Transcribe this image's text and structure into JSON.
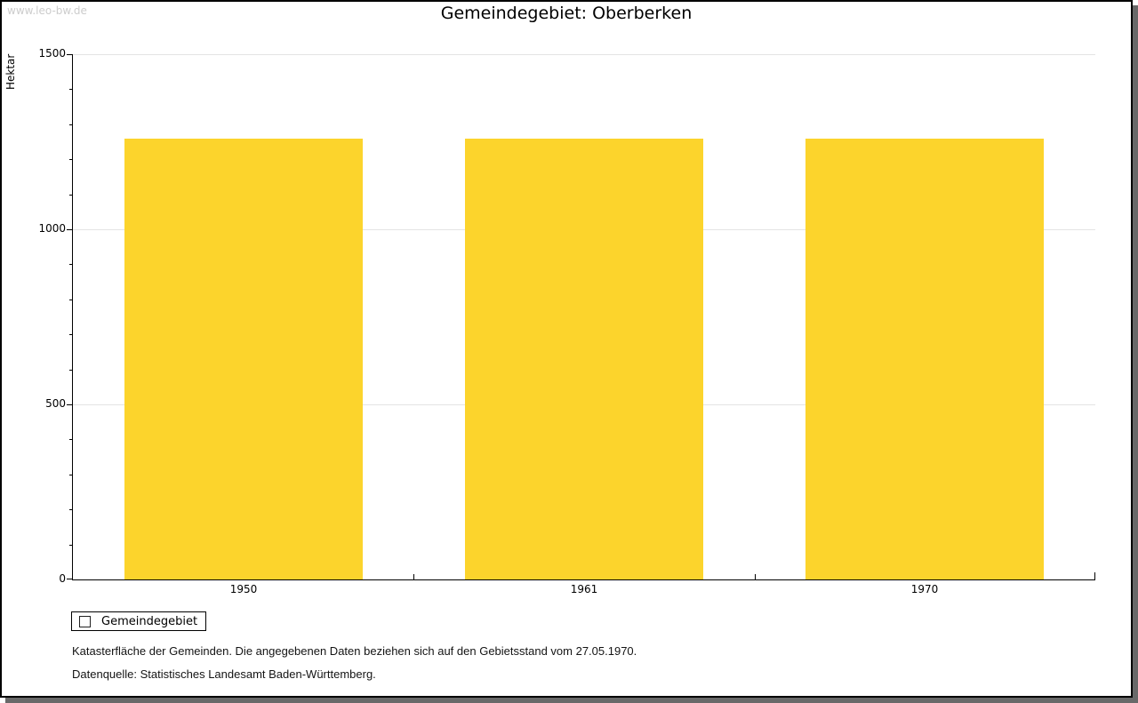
{
  "window": {
    "watermark": "www.leo-bw.de"
  },
  "chart_data": {
    "type": "bar",
    "title": "Gemeindegebiet: Oberberken",
    "categories": [
      "1950",
      "1961",
      "1970"
    ],
    "series": [
      {
        "name": "Gemeindegebiet",
        "values": [
          1260,
          1260,
          1260
        ]
      }
    ],
    "xlabel": "",
    "ylabel": "Hektar",
    "ylim": [
      0,
      1500
    ],
    "y_major_ticks": [
      0,
      500,
      1000,
      1500
    ],
    "y_minor_step": 100,
    "grid": true,
    "legend_position": "bottom-left",
    "bar_color": "#FCD42C"
  },
  "footer": {
    "line1": "Katasterfläche der Gemeinden. Die angegebenen Daten beziehen sich auf den Gebietsstand vom 27.05.1970.",
    "line2": "Datenquelle: Statistisches Landesamt Baden-Württemberg."
  },
  "colors": {
    "bar": "#FCD42C",
    "grid": "#E4E4E4",
    "axis": "#000000",
    "watermark": "#CCCCCC",
    "shadow": "#696969"
  }
}
